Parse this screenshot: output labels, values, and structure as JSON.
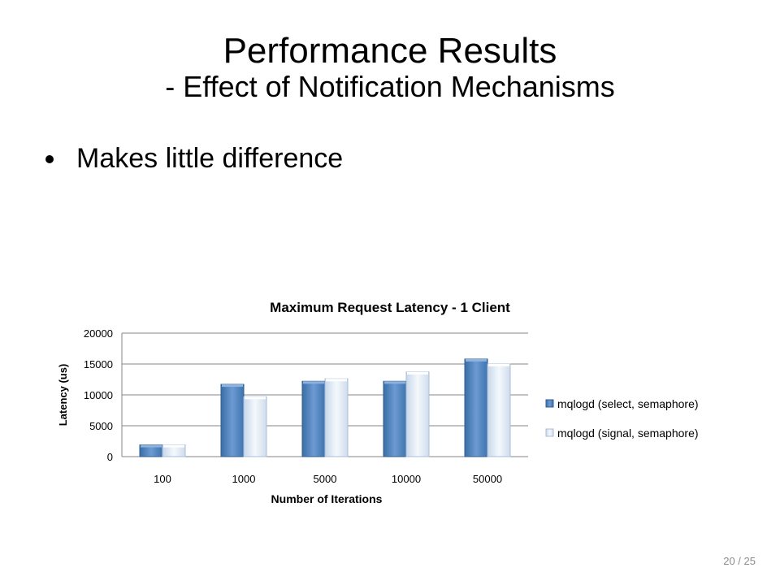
{
  "slide": {
    "title_line1": "Performance Results",
    "title_line2": "- Effect of Notification Mechanisms",
    "bullets": [
      "Makes little difference"
    ],
    "page_number": "20 / 25"
  },
  "chart_data": {
    "type": "bar",
    "title": "Maximum Request Latency - 1 Client",
    "xlabel": "Number of Iterations",
    "ylabel": "Latency (us)",
    "categories": [
      "100",
      "1000",
      "5000",
      "10000",
      "50000"
    ],
    "ylim": [
      0,
      20000
    ],
    "yticks": [
      0,
      5000,
      10000,
      15000,
      20000
    ],
    "grid": true,
    "legend_position": "right",
    "series": [
      {
        "name": "mqlogd (select, semaphore)",
        "values": [
          1900,
          11700,
          12200,
          12200,
          15800
        ],
        "color": "#4f81bd"
      },
      {
        "name": "mqlogd (signal, semaphore)",
        "values": [
          1900,
          9700,
          12600,
          13700,
          15000
        ],
        "color": "#dce6f2"
      }
    ]
  }
}
